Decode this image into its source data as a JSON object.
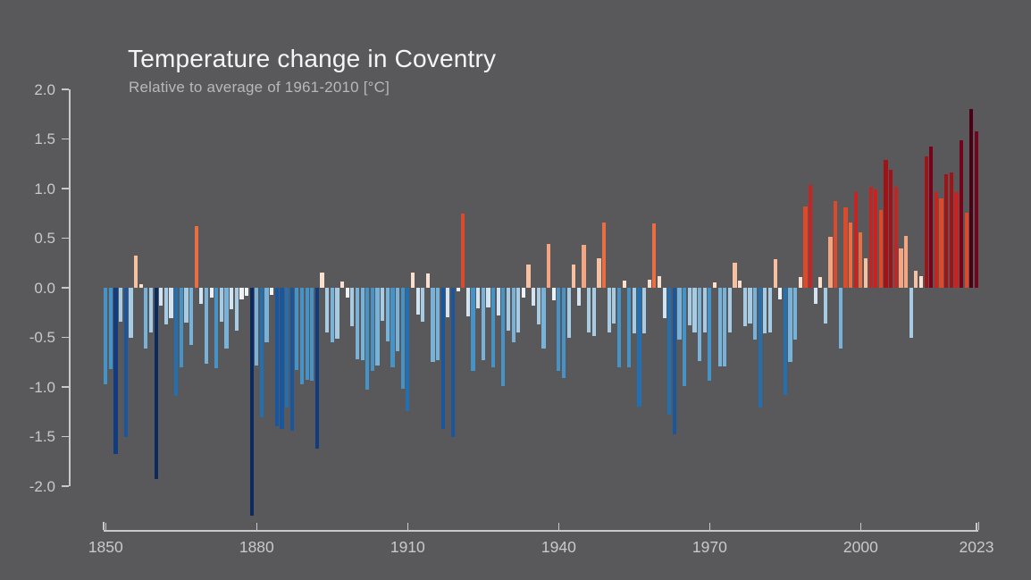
{
  "header": {
    "title": "Temperature change in Coventry",
    "subtitle": "Relative to average of 1961-2010  [°C]"
  },
  "colors": {
    "background": "#59595b",
    "title_text": "#f5f5f5",
    "subtitle_text": "#b8b8b8",
    "axis": "#c9c9c9",
    "tick_text": "#c9c9c9"
  },
  "chart_data": {
    "type": "bar",
    "title": "Temperature change in Coventry",
    "subtitle": "Relative to average of 1961-2010  [°C]",
    "unit": "°C",
    "baseline_period": "1961-2010",
    "start_year": 1850,
    "end_year": 2023,
    "grid": false,
    "legend": false,
    "ylim": [
      -2.35,
      2.0
    ],
    "yticks": [
      "2.0",
      "1.5",
      "1.0",
      "0.5",
      "0.0",
      "-0.5",
      "-1.0",
      "-1.5",
      "-2.0"
    ],
    "xticks": [
      1850,
      1880,
      1910,
      1940,
      1970,
      2000,
      2023
    ],
    "values": [
      -0.97,
      -0.82,
      -1.68,
      -0.34,
      -1.5,
      -0.5,
      0.32,
      0.04,
      -0.61,
      -0.45,
      -1.93,
      -0.18,
      -0.37,
      -0.31,
      -1.09,
      -0.8,
      -0.35,
      -0.58,
      0.62,
      -0.16,
      -0.77,
      -0.1,
      -0.81,
      -0.34,
      -0.61,
      -0.22,
      -0.43,
      -0.12,
      -0.08,
      -2.3,
      -0.78,
      -1.31,
      -0.55,
      -0.07,
      -1.4,
      -1.42,
      -1.21,
      -1.44,
      -0.83,
      -0.97,
      -0.93,
      -0.94,
      -1.62,
      0.15,
      -0.45,
      -0.55,
      -0.51,
      0.06,
      -0.1,
      -0.39,
      -0.72,
      -0.73,
      -1.03,
      -0.84,
      -0.78,
      -0.33,
      -0.54,
      -0.8,
      -0.64,
      -1.02,
      -1.24,
      0.15,
      -0.27,
      -0.34,
      0.14,
      -0.75,
      -0.73,
      -1.42,
      -0.3,
      -1.5,
      -0.04,
      0.75,
      -0.29,
      -0.84,
      -0.21,
      -0.73,
      -0.2,
      -0.8,
      -0.28,
      -0.99,
      -0.43,
      -0.55,
      -0.45,
      -0.1,
      0.23,
      -0.18,
      -0.37,
      -0.61,
      0.44,
      -0.13,
      -0.84,
      -0.91,
      -0.5,
      0.23,
      -0.18,
      0.43,
      -0.45,
      -0.49,
      0.3,
      0.66,
      -0.45,
      -0.36,
      -0.8,
      0.07,
      -0.8,
      -0.46,
      -1.2,
      -0.46,
      0.08,
      0.65,
      0.12,
      -0.31,
      -1.28,
      -1.48,
      -0.52,
      -0.99,
      -0.38,
      -0.45,
      -0.74,
      -0.45,
      -0.94,
      0.05,
      -0.79,
      -0.79,
      -0.45,
      0.25,
      0.07,
      -0.39,
      -0.36,
      -0.52,
      -1.21,
      -0.46,
      -0.45,
      0.29,
      -0.12,
      -1.08,
      -0.75,
      -0.52,
      0.11,
      0.82,
      1.04,
      -0.16,
      0.11,
      -0.36,
      0.51,
      0.87,
      -0.61,
      0.81,
      0.66,
      0.96,
      0.56,
      0.3,
      1.02,
      0.99,
      0.78,
      1.29,
      1.19,
      1.02,
      0.4,
      0.52,
      -0.5,
      0.17,
      0.12,
      1.32,
      1.42,
      0.96,
      0.9,
      1.14,
      1.16,
      0.96,
      1.49,
      0.76,
      1.8,
      1.58
    ],
    "color_scale": [
      {
        "upto": -1.8,
        "color": "#0d2a5e"
      },
      {
        "upto": -1.56,
        "color": "#123c80"
      },
      {
        "upto": -1.36,
        "color": "#1856a0"
      },
      {
        "upto": -1.07,
        "color": "#2270b2"
      },
      {
        "upto": -0.8,
        "color": "#4693c8"
      },
      {
        "upto": -0.515,
        "color": "#79b2d8"
      },
      {
        "upto": -0.33,
        "color": "#a6cbe3"
      },
      {
        "upto": -0.14,
        "color": "#d2e3f1"
      },
      {
        "upto": 0.0,
        "color": "#edf2f7"
      },
      {
        "upto": 0.15,
        "color": "#fbe0cf"
      },
      {
        "upto": 0.35,
        "color": "#f7c0a1"
      },
      {
        "upto": 0.55,
        "color": "#f4a582"
      },
      {
        "upto": 0.72,
        "color": "#ea6e42"
      },
      {
        "upto": 0.92,
        "color": "#dd4a2a"
      },
      {
        "upto": 1.08,
        "color": "#c62321"
      },
      {
        "upto": 1.38,
        "color": "#a21318"
      },
      {
        "upto": 1.72,
        "color": "#73041c"
      },
      {
        "upto": 99,
        "color": "#4c0013"
      }
    ]
  }
}
